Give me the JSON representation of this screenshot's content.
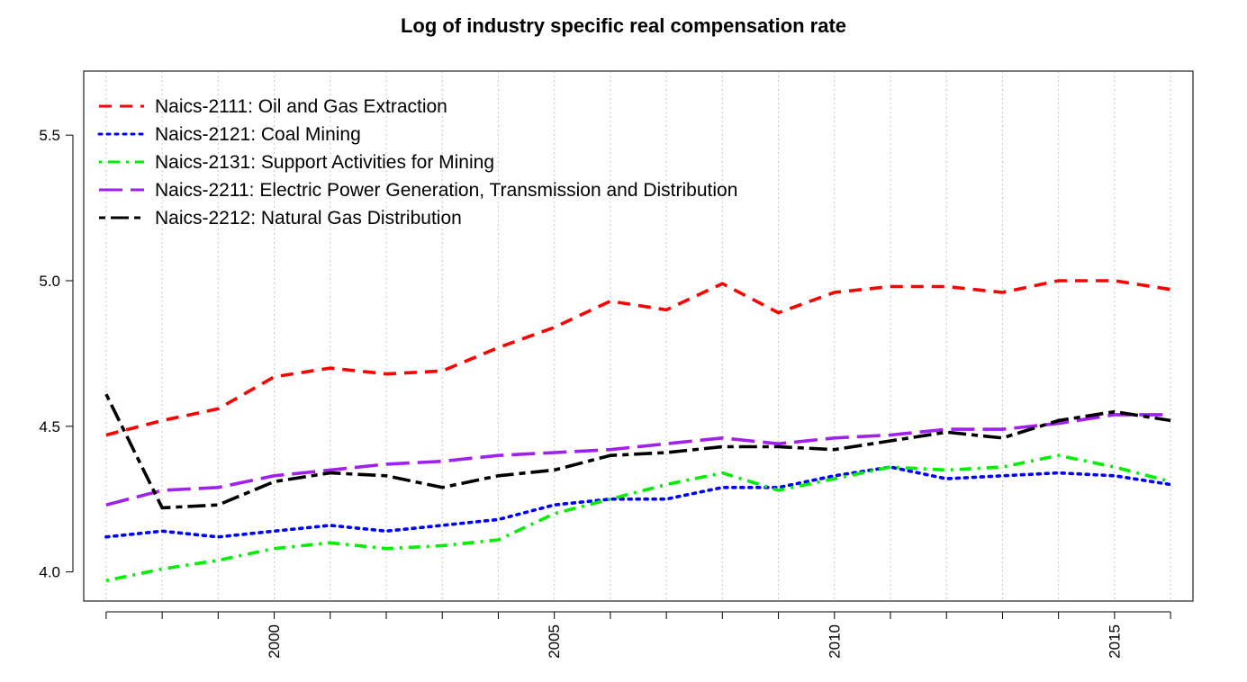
{
  "chart_data": {
    "type": "line",
    "title": "Log of industry specific real compensation rate",
    "xlabel": "",
    "ylabel": "",
    "xlim": [
      1996.6,
      2016.4
    ],
    "ylim": [
      3.9,
      5.72
    ],
    "x": [
      1997,
      1998,
      1999,
      2000,
      2001,
      2002,
      2003,
      2004,
      2005,
      2006,
      2007,
      2008,
      2009,
      2010,
      2011,
      2012,
      2013,
      2014,
      2015,
      2016
    ],
    "x_ticks": [
      2000,
      2005,
      2010,
      2015
    ],
    "y_ticks": [
      4.0,
      4.5,
      5.0,
      5.5
    ],
    "y_tick_labels": [
      "4.0",
      "4.5",
      "5.0",
      "5.5"
    ],
    "grid": "vertical dotted at each year",
    "legend_position": "top-left",
    "series": [
      {
        "name": "Naics-2111: Oil and Gas Extraction",
        "color": "#ff0000",
        "line_style": "dashed",
        "values": [
          4.47,
          4.52,
          4.56,
          4.67,
          4.7,
          4.68,
          4.69,
          4.77,
          4.84,
          4.93,
          4.9,
          4.99,
          4.89,
          4.96,
          4.98,
          4.98,
          4.96,
          5.0,
          5.0,
          4.97
        ]
      },
      {
        "name": "Naics-2121: Coal Mining",
        "color": "#0000ff",
        "line_style": "dotted",
        "values": [
          4.12,
          4.14,
          4.12,
          4.14,
          4.16,
          4.14,
          4.16,
          4.18,
          4.23,
          4.25,
          4.25,
          4.29,
          4.29,
          4.33,
          4.36,
          4.32,
          4.33,
          4.34,
          4.33,
          4.3
        ]
      },
      {
        "name": "Naics-2131: Support Activities for Mining",
        "color": "#00ee00",
        "line_style": "dotdash",
        "values": [
          3.97,
          4.01,
          4.04,
          4.08,
          4.1,
          4.08,
          4.09,
          4.11,
          4.2,
          4.25,
          4.3,
          4.34,
          4.28,
          4.32,
          4.36,
          4.35,
          4.36,
          4.4,
          4.36,
          4.31
        ]
      },
      {
        "name": "Naics-2211: Electric Power Generation, Transmission and Distribution",
        "color": "#a020f0",
        "line_style": "longdash",
        "values": [
          4.23,
          4.28,
          4.29,
          4.33,
          4.35,
          4.37,
          4.38,
          4.4,
          4.41,
          4.42,
          4.44,
          4.46,
          4.44,
          4.46,
          4.47,
          4.49,
          4.49,
          4.51,
          4.54,
          4.54
        ]
      },
      {
        "name": "Naics-2212: Natural Gas Distribution",
        "color": "#000000",
        "line_style": "twodash",
        "values": [
          4.61,
          4.22,
          4.23,
          4.31,
          4.34,
          4.33,
          4.29,
          4.33,
          4.35,
          4.4,
          4.41,
          4.43,
          4.43,
          4.42,
          4.45,
          4.48,
          4.46,
          4.52,
          4.55,
          4.52
        ]
      }
    ]
  }
}
